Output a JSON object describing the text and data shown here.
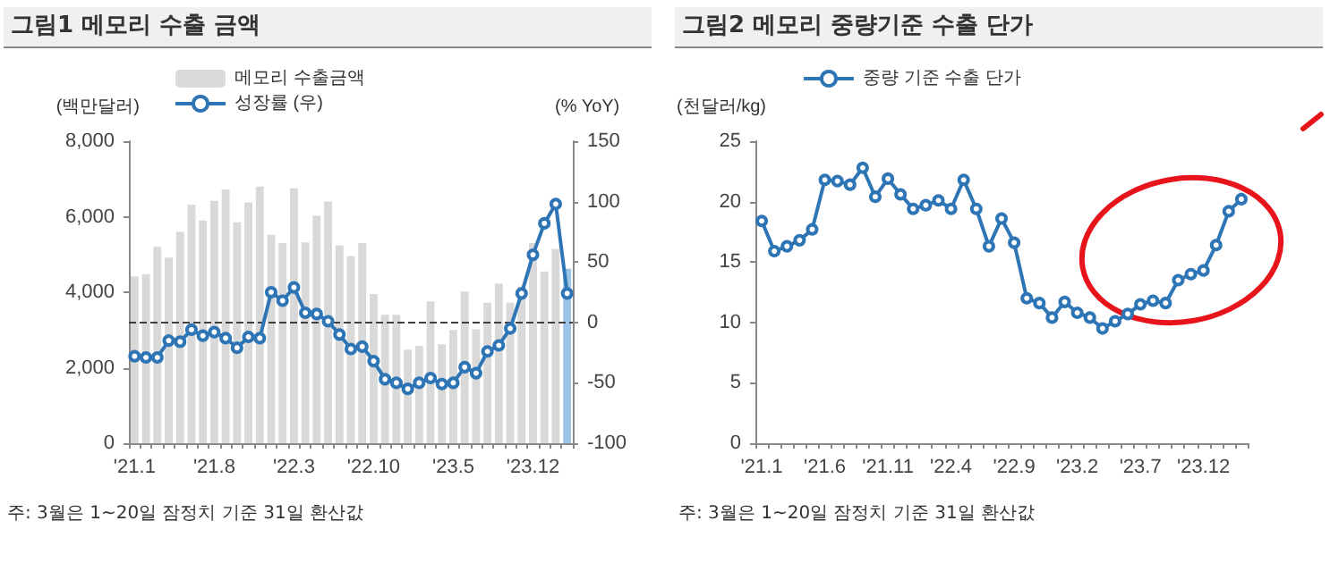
{
  "chart_data": [
    {
      "type": "bar",
      "title": "그림1 메모리 수출 금액",
      "ylabel": "(백만달러)",
      "y2label": "(% YoY)",
      "categories": [
        "'21.1",
        null,
        null,
        null,
        null,
        null,
        null,
        "'21.8",
        null,
        null,
        null,
        null,
        null,
        null,
        "'22.3",
        null,
        null,
        null,
        null,
        null,
        null,
        "'22.10",
        null,
        null,
        null,
        null,
        null,
        null,
        "'23.5",
        null,
        null,
        null,
        null,
        null,
        null,
        "'23.12",
        null,
        null,
        null
      ],
      "series": [
        {
          "name": "메모리 수출금액",
          "color": "#d9d9d9",
          "colors": [
            "#d9d9d9",
            "#d9d9d9",
            "#d9d9d9",
            "#d9d9d9",
            "#d9d9d9",
            "#d9d9d9",
            "#d9d9d9",
            "#d9d9d9",
            "#d9d9d9",
            "#d9d9d9",
            "#d9d9d9",
            "#d9d9d9",
            "#d9d9d9",
            "#d9d9d9",
            "#d9d9d9",
            "#d9d9d9",
            "#d9d9d9",
            "#d9d9d9",
            "#d9d9d9",
            "#d9d9d9",
            "#d9d9d9",
            "#d9d9d9",
            "#d9d9d9",
            "#d9d9d9",
            "#d9d9d9",
            "#d9d9d9",
            "#d9d9d9",
            "#d9d9d9",
            "#d9d9d9",
            "#d9d9d9",
            "#d9d9d9",
            "#d9d9d9",
            "#d9d9d9",
            "#d9d9d9",
            "#d9d9d9",
            "#d9d9d9",
            "#d9d9d9",
            "#d9d9d9",
            "#9dc3e6"
          ],
          "values": [
            4420,
            4480,
            5200,
            4920,
            5600,
            6320,
            5900,
            6420,
            6720,
            5850,
            6380,
            6800,
            5520,
            5300,
            6750,
            5320,
            6030,
            6400,
            5240,
            4950,
            5300,
            3950,
            3400,
            3400,
            2480,
            2580,
            3760,
            2620,
            3000,
            4020,
            3020,
            3720,
            4230,
            3720,
            4150,
            5300,
            4550,
            5150,
            4620
          ]
        },
        {
          "name": "성장률 (우)",
          "type": "line",
          "axis": "y2",
          "color": "#2e75b6",
          "values": [
            -28,
            -29,
            -29,
            -15,
            -16,
            -6,
            -11,
            -8,
            -13,
            -21,
            -12,
            -13,
            25,
            18,
            29,
            8,
            7,
            1,
            -10,
            -22,
            -20,
            -32,
            -47,
            -50,
            -55,
            -50,
            -46,
            -51,
            -50,
            -37,
            -42,
            -24,
            -19,
            -5,
            24,
            56,
            82,
            98,
            24
          ]
        }
      ],
      "ylim": [
        0,
        8000
      ],
      "yticks": [
        0,
        {
          "value": 2000,
          "label": "2,000"
        },
        {
          "value": 4000,
          "label": "4,000"
        },
        {
          "value": 6000,
          "label": "6,000"
        },
        {
          "value": 8000,
          "label": "8,000"
        }
      ],
      "y2lim": [
        -100,
        150
      ],
      "y2ticks": [
        -100,
        -50,
        0,
        50,
        100,
        150
      ],
      "ref_lines": [
        {
          "axis": "y2",
          "value": 0,
          "color": "#404040",
          "line_style": "dashed"
        }
      ],
      "marker": "circle",
      "legend": "top left",
      "annotations": [
        "주: 3월은 1~20일 잠정치 기준 31일 환산값"
      ]
    },
    {
      "type": "line",
      "title": "그림2 메모리 중량기준 수출 단가",
      "ylabel": "(천달러/kg)",
      "categories": [
        "'21.1",
        null,
        null,
        null,
        null,
        "'21.6",
        null,
        null,
        null,
        null,
        "'21.11",
        null,
        null,
        null,
        null,
        "'22.4",
        null,
        null,
        null,
        null,
        "'22.9",
        null,
        null,
        null,
        null,
        "'23.2",
        null,
        null,
        null,
        null,
        "'23.7",
        null,
        null,
        null,
        null,
        "'23.12",
        null,
        null,
        null
      ],
      "series": [
        {
          "name": "중량 기준 수출 단가",
          "color": "#2e75b6",
          "values": [
            18.4,
            15.9,
            16.3,
            16.8,
            17.7,
            21.8,
            21.7,
            21.4,
            22.8,
            20.4,
            21.9,
            20.6,
            19.4,
            19.7,
            20.1,
            19.4,
            21.8,
            19.4,
            16.3,
            18.6,
            16.6,
            12.0,
            11.6,
            10.4,
            11.7,
            10.8,
            10.4,
            9.5,
            10.1,
            10.7,
            11.5,
            11.8,
            11.6,
            13.5,
            14.0,
            14.3,
            16.4,
            19.2,
            20.2
          ]
        }
      ],
      "ylim": [
        0,
        25
      ],
      "yticks": [
        0,
        5,
        10,
        15,
        20,
        25
      ],
      "marker": "circle",
      "legend": "top left",
      "annotations": [
        "주: 3월은 1~20일 잠정치 기준 31일 환산값"
      ]
    }
  ]
}
